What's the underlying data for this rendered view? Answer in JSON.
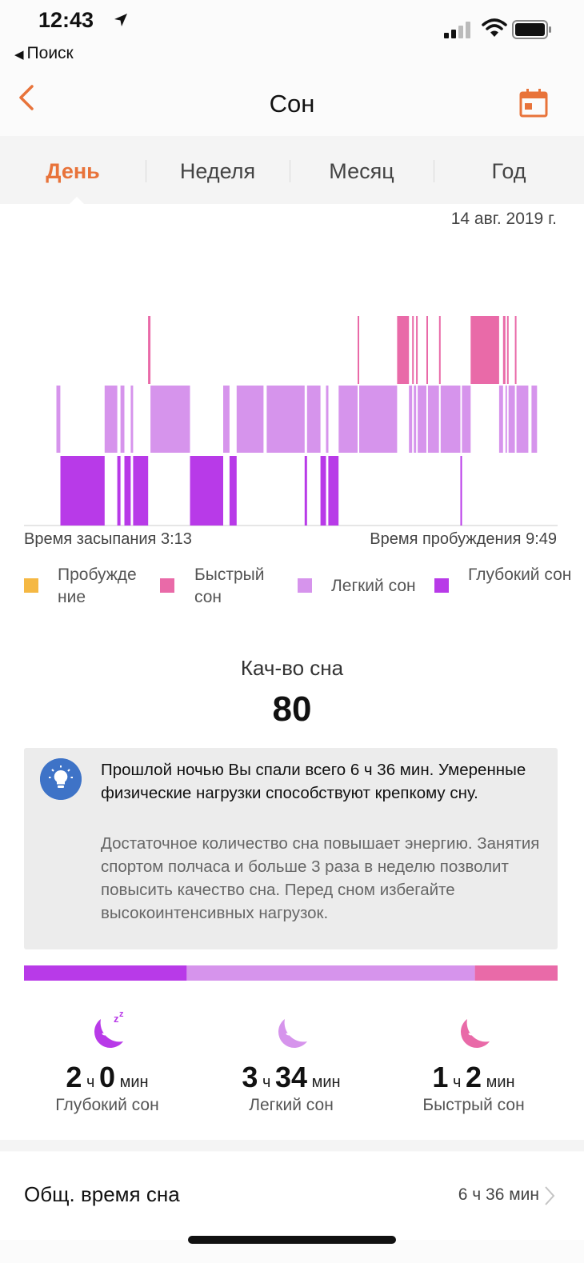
{
  "status": {
    "time": "12:43",
    "back_app": "Поиск"
  },
  "nav": {
    "title": "Сон"
  },
  "tabs": [
    {
      "label": "День",
      "active": true
    },
    {
      "label": "Неделя",
      "active": false
    },
    {
      "label": "Месяц",
      "active": false
    },
    {
      "label": "Год",
      "active": false
    }
  ],
  "date": "14 авг. 2019 г.",
  "sleep_start": "Время засыпания 3:13",
  "wake_time": "Время пробуждения 9:49",
  "legend": [
    {
      "label": "Пробужде ние",
      "color": "#f5b843"
    },
    {
      "label": "Быстрый сон",
      "color": "#e96aa8"
    },
    {
      "label": "Легкий сон",
      "color": "#d694ec"
    },
    {
      "label": "Глубокий сон",
      "color": "#b83ae8"
    }
  ],
  "quality": {
    "label": "Кач-во сна",
    "score": "80"
  },
  "tip": {
    "title": "Прошлой ночью Вы спали всего 6 ч 36 мин. Умеренные физические нагрузки способствуют крепкому сну.",
    "body": "Достаточное количество сна повышает энергию. Занятия спортом полчаса и больше 3 раза в неделю позволит повысить качество сна. Перед сном избегайте высокоинтенсивных нагрузок."
  },
  "stats": [
    {
      "hours": "2",
      "h_unit": "ч",
      "minutes": "0",
      "m_unit": "мин",
      "label": "Глубокий сон",
      "color": "#b83ae8",
      "icon": "moon-zzz-icon"
    },
    {
      "hours": "3",
      "h_unit": "ч",
      "minutes": "34",
      "m_unit": "мин",
      "label": "Легкий сон",
      "color": "#d694ec",
      "icon": "moon-icon"
    },
    {
      "hours": "1",
      "h_unit": "ч",
      "minutes": "2",
      "m_unit": "мин",
      "label": "Быстрый сон",
      "color": "#e96aa8",
      "icon": "moon-icon"
    }
  ],
  "total": {
    "label": "Общ. время сна",
    "value": "6 ч 36 мин"
  },
  "chart_data": {
    "type": "bar",
    "description_levels": [
      "Быстрый сон",
      "Легкий сон",
      "Глубокий сон"
    ],
    "x_start": "3:13",
    "x_end": "9:49",
    "stage_totals_minutes": {
      "Глубокий сон": 120,
      "Легкий сон": 214,
      "Быстрый сон": 62
    },
    "stage_bar_fractions": [
      {
        "stage": "Глубокий сон",
        "fraction": 0.305
      },
      {
        "stage": "Легкий сон",
        "fraction": 0.54
      },
      {
        "stage": "Быстрый сон",
        "fraction": 0.155
      }
    ],
    "segments": [
      [
        "Легкий сон",
        3.21,
        3.26
      ],
      [
        "Глубокий сон",
        3.26,
        3.82
      ],
      [
        "Легкий сон",
        3.82,
        3.98
      ],
      [
        "Глубокий сон",
        3.98,
        4.02
      ],
      [
        "Легкий сон",
        4.02,
        4.07
      ],
      [
        "Глубокий сон",
        4.07,
        4.15
      ],
      [
        "Легкий сон",
        4.15,
        4.18
      ],
      [
        "Глубокий сон",
        4.18,
        4.37
      ],
      [
        "Быстрый сон",
        4.37,
        4.4
      ],
      [
        "Легкий сон",
        4.4,
        4.9
      ],
      [
        "Глубокий сон",
        4.9,
        5.32
      ],
      [
        "Легкий сон",
        5.32,
        5.4
      ],
      [
        "Глубокий сон",
        5.4,
        5.49
      ],
      [
        "Легкий сон",
        5.49,
        5.83
      ],
      [
        "Легкий сон",
        5.87,
        6.35
      ],
      [
        "Глубокий сон",
        6.35,
        6.38
      ],
      [
        "Легкий сон",
        6.38,
        6.55
      ],
      [
        "Глубокий сон",
        6.55,
        6.62
      ],
      [
        "Легкий сон",
        6.62,
        6.65
      ],
      [
        "Глубокий сон",
        6.65,
        6.78
      ],
      [
        "Легкий сон",
        6.78,
        7.02
      ],
      [
        "Быстрый сон",
        7.02,
        7.04
      ],
      [
        "Легкий сон",
        7.04,
        7.52
      ],
      [
        "Быстрый сон",
        7.52,
        7.67
      ],
      [
        "Легкий сон",
        7.67,
        7.71
      ],
      [
        "Быстрый сон",
        7.71,
        7.73
      ],
      [
        "Легкий сон",
        7.73,
        7.76
      ],
      [
        "Быстрый сон",
        7.76,
        7.78
      ],
      [
        "Легкий сон",
        7.78,
        7.89
      ],
      [
        "Быстрый сон",
        7.89,
        7.91
      ],
      [
        "Легкий сон",
        7.91,
        8.05
      ],
      [
        "Быстрый сон",
        8.05,
        8.07
      ],
      [
        "Легкий сон",
        8.07,
        8.32
      ],
      [
        "Глубокий сон",
        8.32,
        8.34
      ],
      [
        "Легкий сон",
        8.34,
        8.45
      ],
      [
        "Быстрый сон",
        8.45,
        8.81
      ],
      [
        "Легкий сон",
        8.81,
        8.86
      ],
      [
        "Быстрый сон",
        8.86,
        8.89
      ],
      [
        "Легкий сон",
        8.89,
        8.91
      ],
      [
        "Быстрый сон",
        8.91,
        8.93
      ],
      [
        "Легкий сон",
        8.93,
        9.01
      ],
      [
        "Быстрый сон",
        9.01,
        9.03
      ],
      [
        "Легкий сон",
        9.03,
        9.18
      ],
      [
        "Легкий сон",
        9.22,
        9.29
      ]
    ]
  }
}
